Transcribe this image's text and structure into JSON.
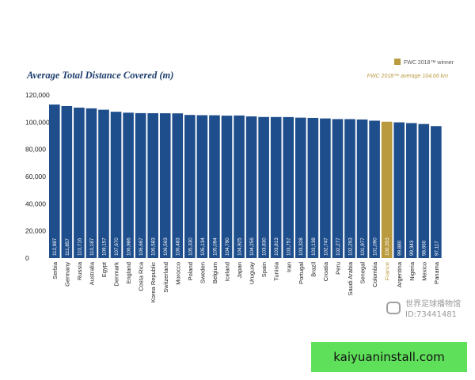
{
  "chart_data": {
    "type": "bar",
    "title": "Average Total Distance Covered (m)",
    "legend": {
      "label": "FWC 2018™ winner",
      "color": "#b99a3e",
      "placement": "top-right"
    },
    "average_note": "FWC 2018™ average 104,66 km",
    "categories": [
      "Serbia",
      "Germany",
      "Russia",
      "Australia",
      "Egypt",
      "Denmark",
      "England",
      "Costa Rica",
      "Korea Republic",
      "Switzerland",
      "Morocco",
      "Poland",
      "Sweden",
      "Belgium",
      "Iceland",
      "Japan",
      "Uruguay",
      "Spain",
      "Tunisia",
      "Iran",
      "Portugal",
      "Brazil",
      "Croatia",
      "Peru",
      "Saudi Arabia",
      "Senegal",
      "Colombia",
      "France",
      "Argentina",
      "Nigeria",
      "Mexico",
      "Panama"
    ],
    "values": [
      112987,
      111857,
      110716,
      110187,
      109157,
      107670,
      106986,
      106667,
      106583,
      106563,
      106483,
      105330,
      105134,
      105094,
      104790,
      104925,
      104256,
      103830,
      103813,
      103757,
      103328,
      103138,
      102747,
      102277,
      102263,
      101977,
      101090,
      100353,
      99880,
      99343,
      98660,
      97117
    ],
    "value_labels": [
      "112,987",
      "111,857",
      "110,716",
      "110,187",
      "109,157",
      "107,670",
      "106,986",
      "106,667",
      "106,583",
      "106,563",
      "106,483",
      "105,330",
      "105,134",
      "105,094",
      "104,790",
      "104,925",
      "104,256",
      "103,830",
      "103,813",
      "103,757",
      "103,328",
      "103,138",
      "102,747",
      "102,277",
      "102,263",
      "101,977",
      "101,090",
      "100,353",
      "99,880",
      "99,343",
      "98,660",
      "97,117"
    ],
    "highlight": "France",
    "ylim": [
      0,
      120000
    ],
    "yticks": [
      0,
      20000,
      40000,
      60000,
      80000,
      100000,
      120000
    ],
    "ytick_labels": [
      "0",
      "20,000",
      "40,000",
      "60,000",
      "80,000",
      "100,000",
      "120,000"
    ],
    "bar_color": "#1f4e8c",
    "highlight_color": "#b99a3e",
    "title_color": "#1f3f6e"
  },
  "watermark": {
    "line1": "世界足球播物馆",
    "line2": "ID:73441481"
  },
  "banner": {
    "text": "kaiyuaninstall.com"
  }
}
